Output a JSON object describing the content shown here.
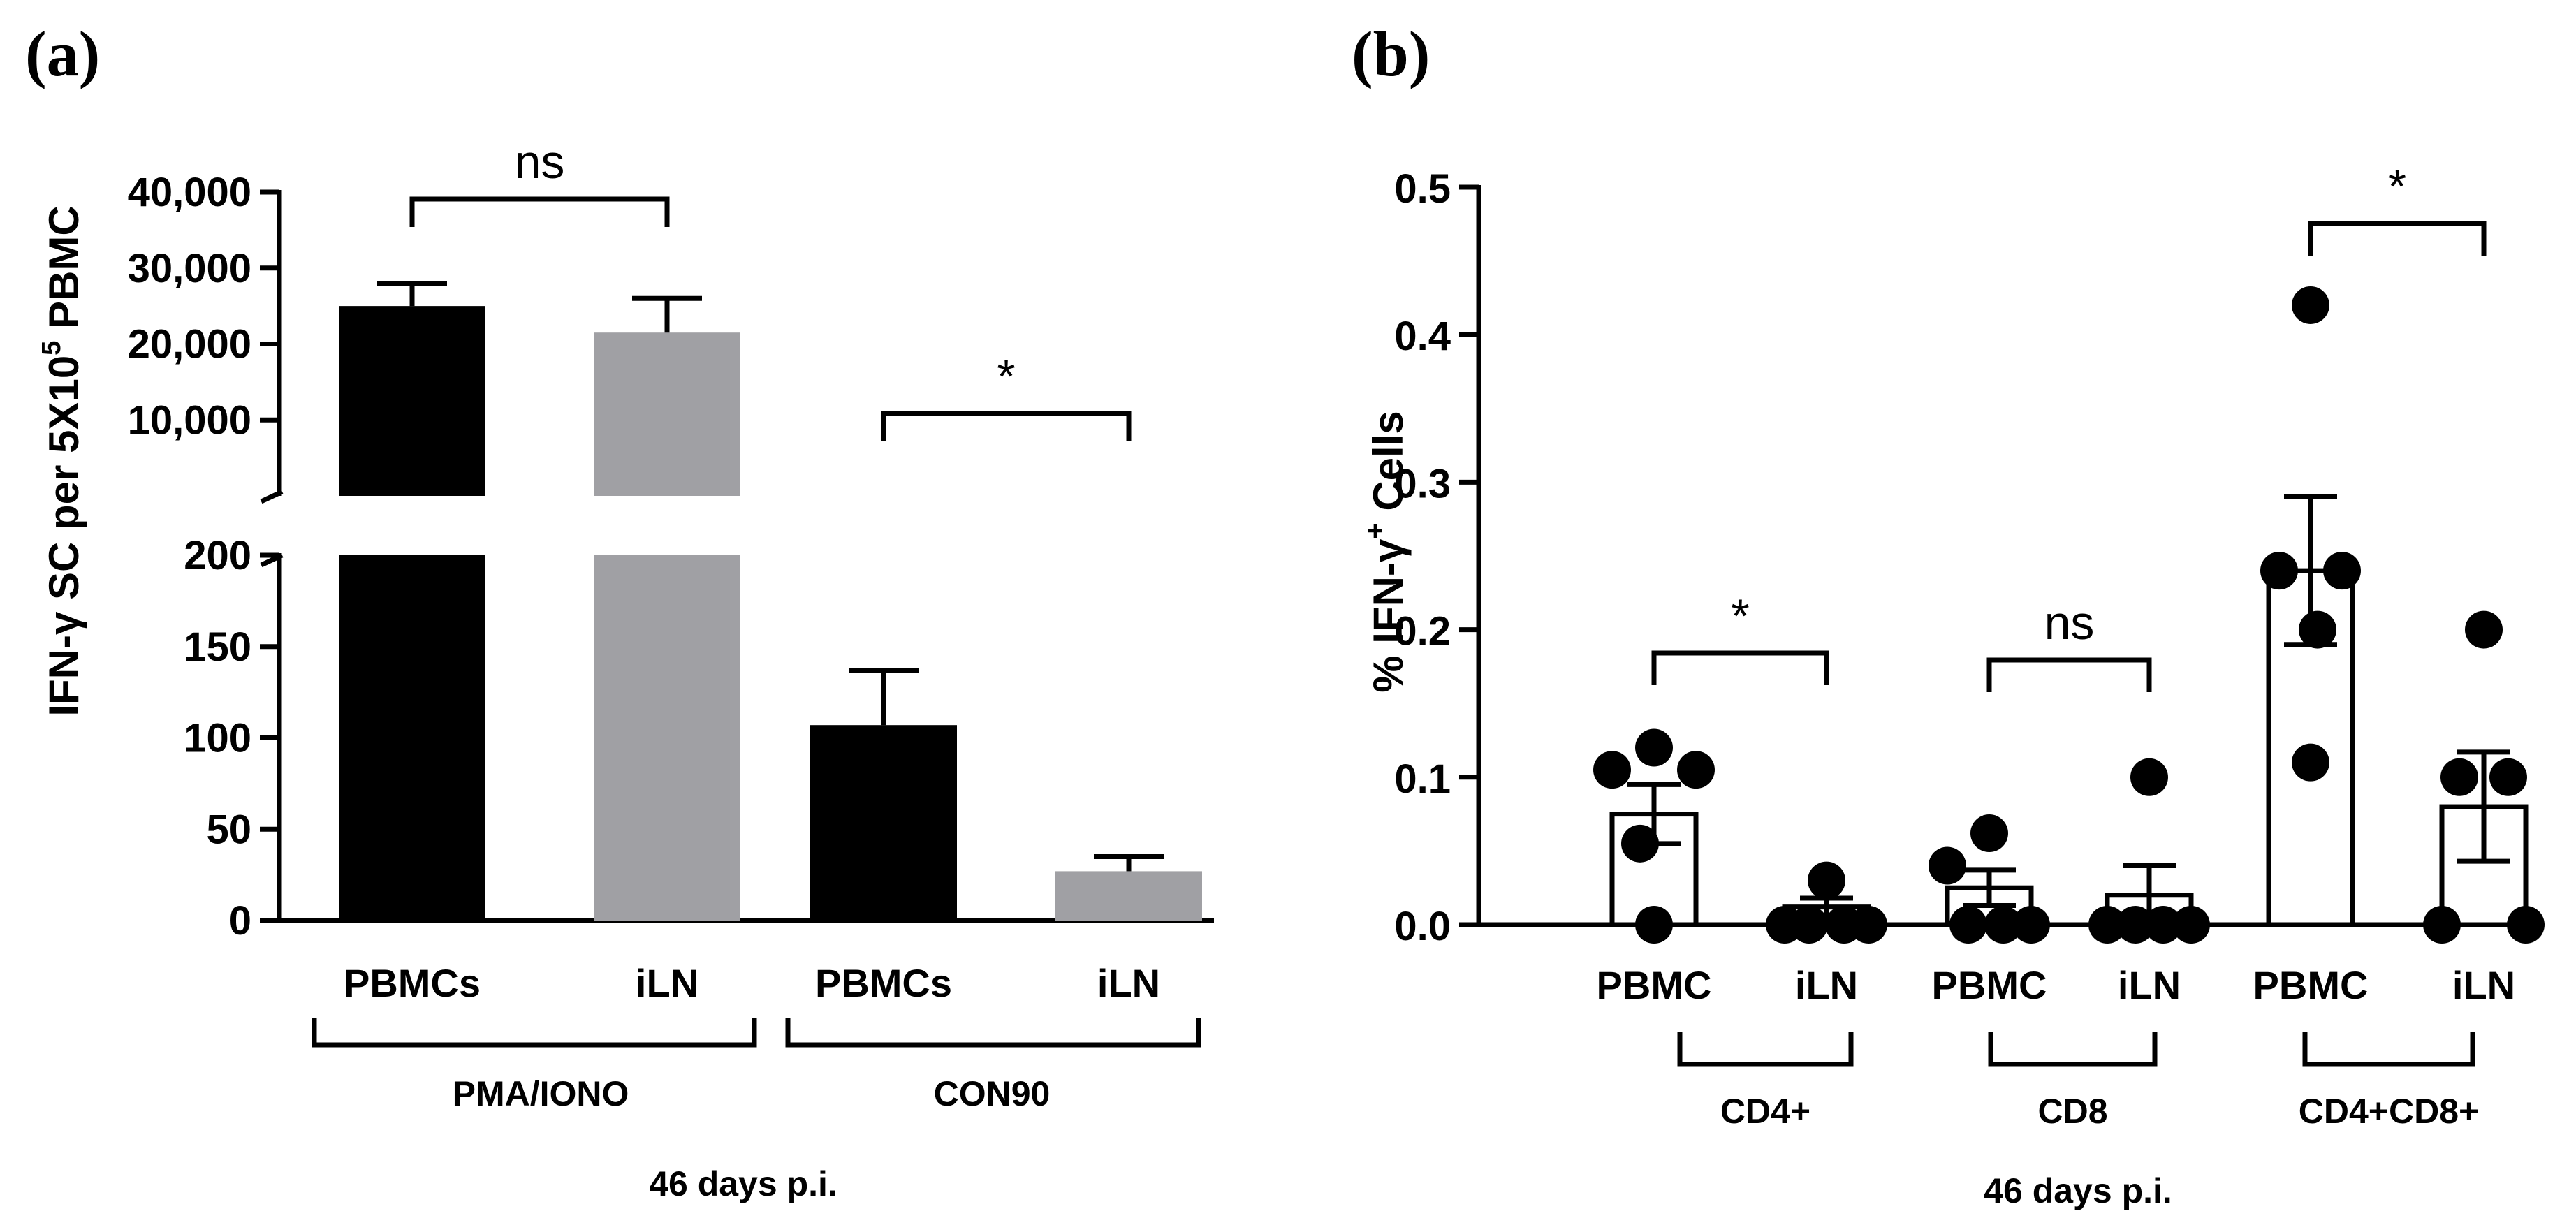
{
  "chart_data": [
    {
      "panel_label": "(a)",
      "type": "bar",
      "ylabel_main": "IFN-γ SC per 5X10",
      "ylabel_sup": "5",
      "ylabel_tail": " PBMC",
      "xlabel": "46 days p.i.",
      "y_axis_break": true,
      "ylim_lower": [
        0,
        200
      ],
      "ylim_upper": [
        0,
        40000
      ],
      "yticks_lower": [
        "0",
        "50",
        "100",
        "150",
        "200"
      ],
      "yticks_upper": [
        "10,000",
        "20,000",
        "30,000",
        "40,000"
      ],
      "bars": [
        {
          "category": "PBMCs",
          "group": "PMA/IONO",
          "value": 25000,
          "error": 3000,
          "color": "#000000"
        },
        {
          "category": "iLN",
          "group": "PMA/IONO",
          "value": 21500,
          "error": 4500,
          "color": "#a0a0a4"
        },
        {
          "category": "PBMCs",
          "group": "CON90",
          "value": 107,
          "error": 30,
          "color": "#000000"
        },
        {
          "category": "iLN",
          "group": "CON90",
          "value": 27,
          "error": 8,
          "color": "#a0a0a4"
        }
      ],
      "groups": [
        "PMA/IONO",
        "CON90"
      ],
      "significance": [
        {
          "pair": [
            0,
            1
          ],
          "label": "ns"
        },
        {
          "pair": [
            2,
            3
          ],
          "label": "*"
        }
      ]
    },
    {
      "panel_label": "(b)",
      "type": "bar",
      "ylabel_main": "% IFN-γ",
      "ylabel_sup": "+",
      "ylabel_tail": " Cells",
      "xlabel": "46 days p.i.",
      "ylim": [
        0,
        0.5
      ],
      "yticks": [
        "0.0",
        "0.1",
        "0.2",
        "0.3",
        "0.4",
        "0.5"
      ],
      "bars": [
        {
          "category": "PBMC",
          "group": "CD4+",
          "value": 0.075,
          "error": 0.02,
          "points": [
            0.12,
            0.105,
            0.105,
            0.055,
            0.0
          ]
        },
        {
          "category": "iLN",
          "group": "CD4+",
          "value": 0.012,
          "error": 0.006,
          "points": [
            0.03,
            0.0,
            0.0,
            0.0,
            0.0
          ]
        },
        {
          "category": "PBMC",
          "group": "CD8",
          "value": 0.025,
          "error": 0.012,
          "points": [
            0.062,
            0.04,
            0.0,
            0.0,
            0.0
          ]
        },
        {
          "category": "iLN",
          "group": "CD8",
          "value": 0.02,
          "error": 0.02,
          "points": [
            0.1,
            0.0,
            0.0,
            0.0,
            0.0
          ]
        },
        {
          "category": "PBMC",
          "group": "CD4+CD8+",
          "value": 0.24,
          "error": 0.05,
          "points": [
            0.42,
            0.24,
            0.24,
            0.2,
            0.11
          ]
        },
        {
          "category": "iLN",
          "group": "CD4+CD8+",
          "value": 0.08,
          "error": 0.037,
          "points": [
            0.2,
            0.1,
            0.1,
            0.0,
            0.0
          ]
        }
      ],
      "groups": [
        "CD4+",
        "CD8",
        "CD4+CD8+"
      ],
      "significance": [
        {
          "pair": [
            0,
            1
          ],
          "label": "*"
        },
        {
          "pair": [
            2,
            3
          ],
          "label": "ns"
        },
        {
          "pair": [
            4,
            5
          ],
          "label": "*"
        }
      ]
    }
  ]
}
